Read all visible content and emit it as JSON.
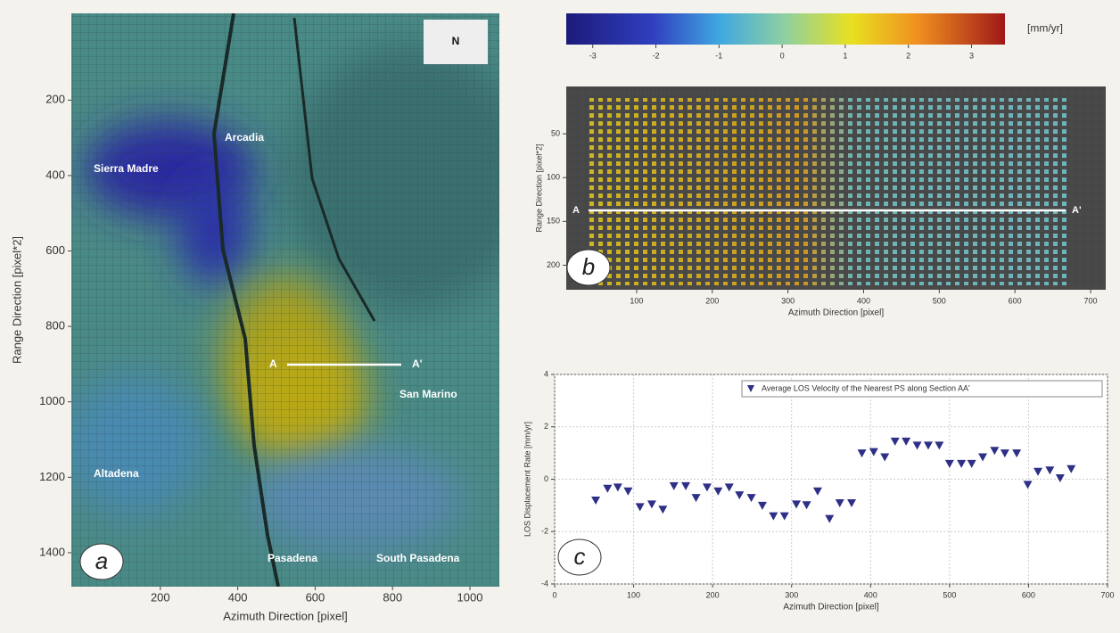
{
  "chart_data": [
    {
      "type": "image",
      "panel_label": "a",
      "x_label": "Azimuth Direction [pixel]",
      "y_label": "Range Direction [pixel*2]",
      "xlim": [
        -30,
        1076
      ],
      "ylim": [
        1490,
        -30
      ],
      "xticks": [
        200,
        400,
        600,
        800,
        1000
      ],
      "yticks": [
        200,
        400,
        600,
        800,
        1000,
        1200,
        1400
      ],
      "annotations": [
        "Sierra Madre",
        "Arcadia",
        "Altadena",
        "Pasadena",
        "South Pasadena",
        "San Marino",
        "A",
        "A'",
        "N"
      ]
    },
    {
      "type": "colorbar",
      "label": "[mm/yr]",
      "xlim": [
        -3.42,
        3.53
      ],
      "xticks": [
        -3,
        -2,
        -1,
        0,
        1,
        2,
        3
      ]
    },
    {
      "type": "image",
      "panel_label": "b",
      "x_label": "Azimuth Direction [pixel]",
      "y_label": "Range Direction [pixel*2]",
      "xlim": [
        7,
        720
      ],
      "ylim": [
        228,
        -4
      ],
      "xticks": [
        100,
        200,
        300,
        400,
        500,
        600,
        700
      ],
      "yticks": [
        50,
        100,
        150,
        200
      ],
      "annotations": [
        "A",
        "A'"
      ]
    },
    {
      "type": "scatter",
      "panel_label": "c",
      "x_label": "Azimuth Direction [pixel]",
      "y_label": "LOS Displacement Rate [mm/yr]",
      "xlim": [
        0,
        700
      ],
      "ylim": [
        -4,
        4
      ],
      "xticks": [
        0,
        100,
        200,
        300,
        400,
        500,
        600,
        700
      ],
      "yticks": [
        -4,
        -2,
        0,
        2,
        4
      ],
      "grid": true,
      "x": [
        52,
        67,
        80,
        93,
        108,
        123,
        137,
        151,
        166,
        179,
        193,
        207,
        221,
        234,
        249,
        263,
        277,
        291,
        306,
        319,
        333,
        348,
        361,
        376,
        389,
        404,
        418,
        431,
        445,
        459,
        473,
        487,
        500,
        515,
        528,
        542,
        557,
        570,
        585,
        599,
        612,
        627,
        640,
        654
      ],
      "series": [
        {
          "name": "Average LOS Velocity of the Nearest PS along Section AA'",
          "color": "#2e2f86",
          "values": [
            -0.8,
            -0.35,
            -0.3,
            -0.45,
            -1.05,
            -0.95,
            -1.15,
            -0.25,
            -0.25,
            -0.7,
            -0.3,
            -0.45,
            -0.3,
            -0.6,
            -0.7,
            -1.0,
            -1.4,
            -1.4,
            -0.95,
            -0.98,
            -0.45,
            -1.5,
            -0.9,
            -0.9,
            1.0,
            1.05,
            0.85,
            1.45,
            1.45,
            1.3,
            1.3,
            1.3,
            0.6,
            0.6,
            0.6,
            0.85,
            1.1,
            1.0,
            1.0,
            -0.2,
            0.3,
            0.35,
            0.05,
            0.4
          ]
        }
      ]
    }
  ]
}
